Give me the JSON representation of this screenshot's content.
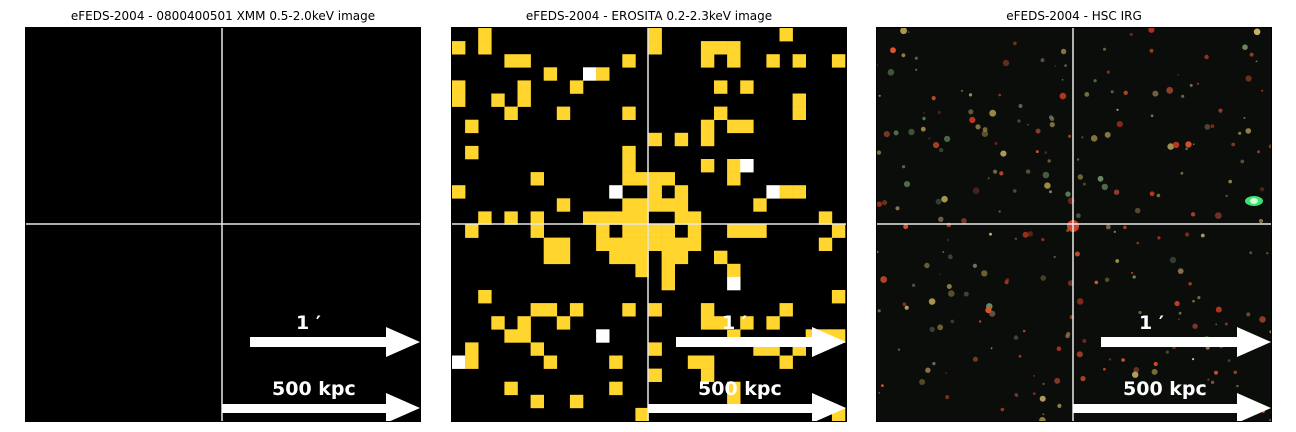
{
  "panels": [
    {
      "title": "eFEDS-2004 - 0800400501 XMM 0.5-2.0keV image",
      "scale_arcmin": "1 ′",
      "scale_kpc": "500 kpc",
      "colors": {
        "main": "#ff9c6e",
        "hot": "#ffd21f",
        "peak": "#ffffff"
      }
    },
    {
      "title": "eFEDS-2004 -  EROSITA 0.2-2.3keV image",
      "scale_arcmin": "1 ′",
      "scale_kpc": "500 kpc",
      "colors": {
        "main": "#ffd52e",
        "peak": "#ffffff"
      }
    },
    {
      "title": "eFEDS-2004 - HSC IRG",
      "scale_arcmin": "1 ′",
      "scale_kpc": "500 kpc",
      "colors": {
        "bg": "#0a0d0a"
      }
    }
  ]
}
